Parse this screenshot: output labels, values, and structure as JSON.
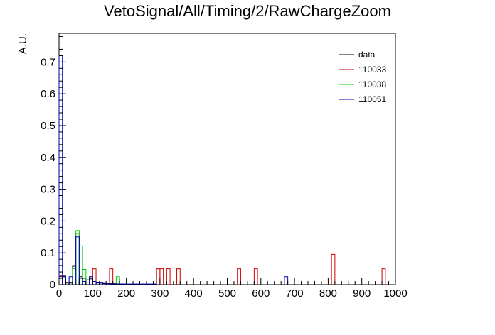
{
  "chart_data": {
    "type": "histogram",
    "title": "VetoSignal/All/Timing/2/RawChargeZoom",
    "ylabel": "A.U.",
    "xlabel": "",
    "xlim": [
      0,
      1000
    ],
    "ylim": [
      0,
      0.79
    ],
    "xticks": [
      0,
      100,
      200,
      300,
      400,
      500,
      600,
      700,
      800,
      900,
      1000
    ],
    "yticks": [
      0,
      0.1,
      0.2,
      0.3,
      0.4,
      0.5,
      0.6,
      0.7
    ],
    "ytick_labels": [
      "0",
      "0.1",
      "0.2",
      "0.3",
      "0.4",
      "0.5",
      "0.6",
      "0.7"
    ],
    "bin_width": 10,
    "legend_position": "top-right",
    "series": [
      {
        "name": "data",
        "color": "#000000",
        "values": [
          [
            0,
            0.027
          ],
          [
            10,
            0.027
          ],
          [
            20,
            0.005
          ],
          [
            30,
            0.005
          ],
          [
            40,
            0.058
          ],
          [
            50,
            0.16
          ],
          [
            60,
            0.025
          ],
          [
            70,
            0.02
          ],
          [
            80,
            0.015
          ],
          [
            90,
            0.018
          ],
          [
            100,
            0.008
          ],
          [
            110,
            0.006
          ],
          [
            120,
            0.005
          ],
          [
            130,
            0.004
          ],
          [
            140,
            0.003
          ],
          [
            150,
            0.003
          ],
          [
            160,
            0.003
          ],
          [
            170,
            0.002
          ],
          [
            180,
            0.002
          ],
          [
            190,
            0.002
          ],
          [
            200,
            0.001
          ]
        ]
      },
      {
        "name": "110033",
        "color": "#cc0000",
        "values": [
          [
            0,
            0.025
          ],
          [
            100,
            0.05
          ],
          [
            150,
            0.05
          ],
          [
            290,
            0.05
          ],
          [
            300,
            0.05
          ],
          [
            320,
            0.05
          ],
          [
            350,
            0.05
          ],
          [
            530,
            0.05
          ],
          [
            580,
            0.05
          ],
          [
            810,
            0.095
          ],
          [
            960,
            0.05
          ]
        ]
      },
      {
        "name": "110038",
        "color": "#00cc00",
        "values": [
          [
            10,
            0.025
          ],
          [
            40,
            0.05
          ],
          [
            50,
            0.17
          ],
          [
            60,
            0.122
          ],
          [
            70,
            0.048
          ],
          [
            90,
            0.025
          ],
          [
            170,
            0.025
          ]
        ]
      },
      {
        "name": "110051",
        "color": "#0000aa",
        "values": [
          [
            0,
            0.72
          ],
          [
            10,
            0.025
          ],
          [
            30,
            0.025
          ],
          [
            50,
            0.15
          ],
          [
            60,
            0.02
          ],
          [
            70,
            0.01
          ],
          [
            90,
            0.025
          ],
          [
            100,
            0.01
          ],
          [
            110,
            0.005
          ],
          [
            120,
            0.005
          ],
          [
            130,
            0.003
          ],
          [
            140,
            0.003
          ],
          [
            150,
            0.002
          ],
          [
            160,
            0.002
          ],
          [
            170,
            0.002
          ],
          [
            180,
            0.002
          ],
          [
            190,
            0.002
          ],
          [
            200,
            0.002
          ],
          [
            210,
            0.002
          ],
          [
            220,
            0.002
          ],
          [
            230,
            0.002
          ],
          [
            240,
            0.002
          ],
          [
            250,
            0.002
          ],
          [
            260,
            0.002
          ],
          [
            270,
            0.002
          ],
          [
            280,
            0.002
          ],
          [
            670,
            0.025
          ]
        ]
      }
    ]
  }
}
